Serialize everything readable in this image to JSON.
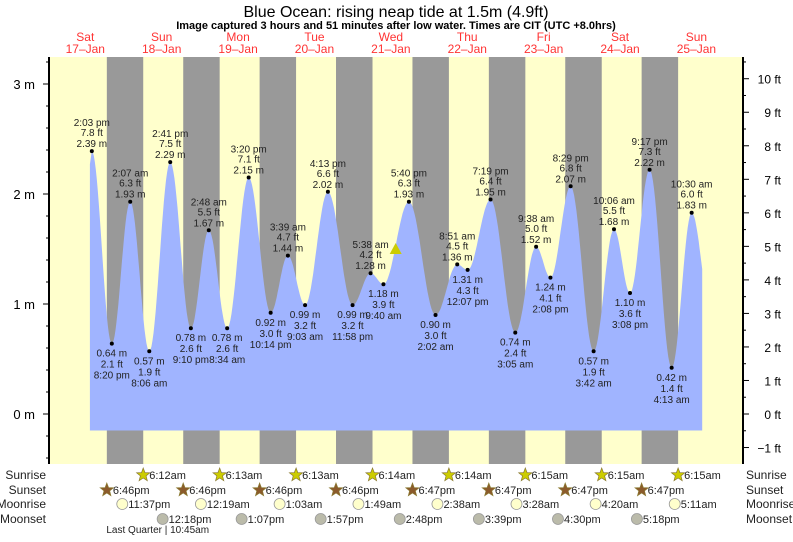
{
  "title": "Blue Ocean: rising  neap tide at 1.5m (4.9ft)",
  "subtitle": "Image captured 3 hours and 51 minutes after low water. Times are CIT (UTC +8.0hrs)",
  "colors": {
    "day": "#ffffcc",
    "night": "#999999",
    "water": "#a0b4ff",
    "day_label": "#ff3333",
    "current_marker": "#cccc00"
  },
  "chart_data": {
    "type": "area",
    "title": "Blue Ocean: rising  neap tide at 1.5m (4.9ft)",
    "ylabel_left_unit": "m",
    "ylabel_right_unit": "ft",
    "ylim_m": [
      -0.45,
      3.24
    ],
    "left_ticks": [
      "3 m",
      "2 m",
      "1 m",
      "0 m"
    ],
    "left_tick_values": [
      3,
      2,
      1,
      0
    ],
    "right_ticks": [
      "10 ft",
      "9 ft",
      "8 ft",
      "7 ft",
      "6 ft",
      "5 ft",
      "4 ft",
      "3 ft",
      "2 ft",
      "1 ft",
      "0 ft",
      "−1 ft"
    ],
    "right_tick_values": [
      10,
      9,
      8,
      7,
      6,
      5,
      4,
      3,
      2,
      1,
      0,
      -1
    ],
    "days": [
      {
        "dow": "Sat",
        "date": "17–Jan"
      },
      {
        "dow": "Sun",
        "date": "18–Jan"
      },
      {
        "dow": "Mon",
        "date": "19–Jan"
      },
      {
        "dow": "Tue",
        "date": "20–Jan"
      },
      {
        "dow": "Wed",
        "date": "21–Jan"
      },
      {
        "dow": "Thu",
        "date": "22–Jan"
      },
      {
        "dow": "Fri",
        "date": "23–Jan"
      },
      {
        "dow": "Sat",
        "date": "24–Jan"
      },
      {
        "dow": "Sun",
        "date": "25–Jan"
      }
    ],
    "extremes": [
      {
        "day": 0,
        "time": "2:03 pm",
        "ft": "7.8 ft",
        "m": 2.39,
        "type": "high"
      },
      {
        "day": 0,
        "time": "8:20 pm",
        "ft": "2.1 ft",
        "m": 0.64,
        "type": "low"
      },
      {
        "day": 1,
        "time": "2:07 am",
        "ft": "6.3 ft",
        "m": 1.93,
        "type": "high"
      },
      {
        "day": 1,
        "time": "8:06 am",
        "ft": "1.9 ft",
        "m": 0.57,
        "type": "low"
      },
      {
        "day": 1,
        "time": "2:41 pm",
        "ft": "7.5 ft",
        "m": 2.29,
        "type": "high"
      },
      {
        "day": 1,
        "time": "9:10 pm",
        "ft": "2.6 ft",
        "m": 0.78,
        "type": "low"
      },
      {
        "day": 2,
        "time": "2:48 am",
        "ft": "5.5 ft",
        "m": 1.67,
        "type": "high"
      },
      {
        "day": 2,
        "time": "8:34 am",
        "ft": "2.6 ft",
        "m": 0.78,
        "type": "low"
      },
      {
        "day": 2,
        "time": "3:20 pm",
        "ft": "7.1 ft",
        "m": 2.15,
        "type": "high"
      },
      {
        "day": 2,
        "time": "10:14 pm",
        "ft": "3.0 ft",
        "m": 0.92,
        "type": "low"
      },
      {
        "day": 3,
        "time": "3:39 am",
        "ft": "4.7 ft",
        "m": 1.44,
        "type": "high"
      },
      {
        "day": 3,
        "time": "9:03 am",
        "ft": "3.2 ft",
        "m": 0.99,
        "type": "low"
      },
      {
        "day": 3,
        "time": "4:13 pm",
        "ft": "6.6 ft",
        "m": 2.02,
        "type": "high"
      },
      {
        "day": 3,
        "time": "11:58 pm",
        "ft": "3.2 ft",
        "m": 0.99,
        "type": "low"
      },
      {
        "day": 4,
        "time": "5:38 am",
        "ft": "4.2 ft",
        "m": 1.28,
        "type": "high"
      },
      {
        "day": 4,
        "time": "9:40 am",
        "ft": "3.9 ft",
        "m": 1.18,
        "type": "low"
      },
      {
        "day": 4,
        "time": "5:40 pm",
        "ft": "6.3 ft",
        "m": 1.93,
        "type": "high"
      },
      {
        "day": 5,
        "time": "2:02 am",
        "ft": "3.0 ft",
        "m": 0.9,
        "type": "low"
      },
      {
        "day": 5,
        "time": "8:51 am",
        "ft": "4.5 ft",
        "m": 1.36,
        "type": "high"
      },
      {
        "day": 5,
        "time": "12:07 pm",
        "ft": "4.3 ft",
        "m": 1.31,
        "type": "low"
      },
      {
        "day": 5,
        "time": "7:19 pm",
        "ft": "6.4 ft",
        "m": 1.95,
        "type": "high"
      },
      {
        "day": 6,
        "time": "3:05 am",
        "ft": "2.4 ft",
        "m": 0.74,
        "type": "low"
      },
      {
        "day": 6,
        "time": "9:38 am",
        "ft": "5.0 ft",
        "m": 1.52,
        "type": "high"
      },
      {
        "day": 6,
        "time": "2:08 pm",
        "ft": "4.1 ft",
        "m": 1.24,
        "type": "low"
      },
      {
        "day": 6,
        "time": "8:29 pm",
        "ft": "6.8 ft",
        "m": 2.07,
        "type": "high"
      },
      {
        "day": 7,
        "time": "3:42 am",
        "ft": "1.9 ft",
        "m": 0.57,
        "type": "low"
      },
      {
        "day": 7,
        "time": "10:06 am",
        "ft": "5.5 ft",
        "m": 1.68,
        "type": "high"
      },
      {
        "day": 7,
        "time": "3:08 pm",
        "ft": "3.6 ft",
        "m": 1.1,
        "type": "low"
      },
      {
        "day": 7,
        "time": "9:17 pm",
        "ft": "7.3 ft",
        "m": 2.22,
        "type": "high"
      },
      {
        "day": 8,
        "time": "4:13 am",
        "ft": "1.4 ft",
        "m": 0.42,
        "type": "low"
      },
      {
        "day": 8,
        "time": "10:30 am",
        "ft": "6.0 ft",
        "m": 1.83,
        "type": "high"
      }
    ],
    "current": {
      "day": 4,
      "time": "1:31 pm",
      "m": 1.5
    }
  },
  "almanac": {
    "labels": {
      "sunrise": "Sunrise",
      "sunset": "Sunset",
      "moonrise": "Moonrise",
      "moonset": "Moonset"
    },
    "sunrise": [
      {
        "day": 1,
        "time": "6:12am"
      },
      {
        "day": 2,
        "time": "6:13am"
      },
      {
        "day": 3,
        "time": "6:13am"
      },
      {
        "day": 4,
        "time": "6:14am"
      },
      {
        "day": 5,
        "time": "6:14am"
      },
      {
        "day": 6,
        "time": "6:15am"
      },
      {
        "day": 7,
        "time": "6:15am"
      },
      {
        "day": 8,
        "time": "6:15am"
      }
    ],
    "sunset": [
      {
        "day": 0,
        "time": "6:46pm"
      },
      {
        "day": 1,
        "time": "6:46pm"
      },
      {
        "day": 2,
        "time": "6:46pm"
      },
      {
        "day": 3,
        "time": "6:46pm"
      },
      {
        "day": 4,
        "time": "6:47pm"
      },
      {
        "day": 5,
        "time": "6:47pm"
      },
      {
        "day": 6,
        "time": "6:47pm"
      },
      {
        "day": 7,
        "time": "6:47pm"
      }
    ],
    "moonrise": [
      {
        "day": 0,
        "time": "11:37pm"
      },
      {
        "day": 2,
        "time": "12:19am"
      },
      {
        "day": 3,
        "time": "1:03am"
      },
      {
        "day": 4,
        "time": "1:49am"
      },
      {
        "day": 5,
        "time": "2:38am"
      },
      {
        "day": 6,
        "time": "3:28am"
      },
      {
        "day": 7,
        "time": "4:20am"
      },
      {
        "day": 8,
        "time": "5:11am"
      }
    ],
    "moonset": [
      {
        "day": 1,
        "time": "12:18pm"
      },
      {
        "day": 2,
        "time": "1:07pm"
      },
      {
        "day": 3,
        "time": "1:57pm"
      },
      {
        "day": 4,
        "time": "2:48pm"
      },
      {
        "day": 5,
        "time": "3:39pm"
      },
      {
        "day": 6,
        "time": "4:30pm"
      },
      {
        "day": 7,
        "time": "5:18pm"
      }
    ],
    "moon_phase": {
      "day": 1,
      "time": "10:45am",
      "text": "Last Quarter | 10:45am"
    }
  }
}
